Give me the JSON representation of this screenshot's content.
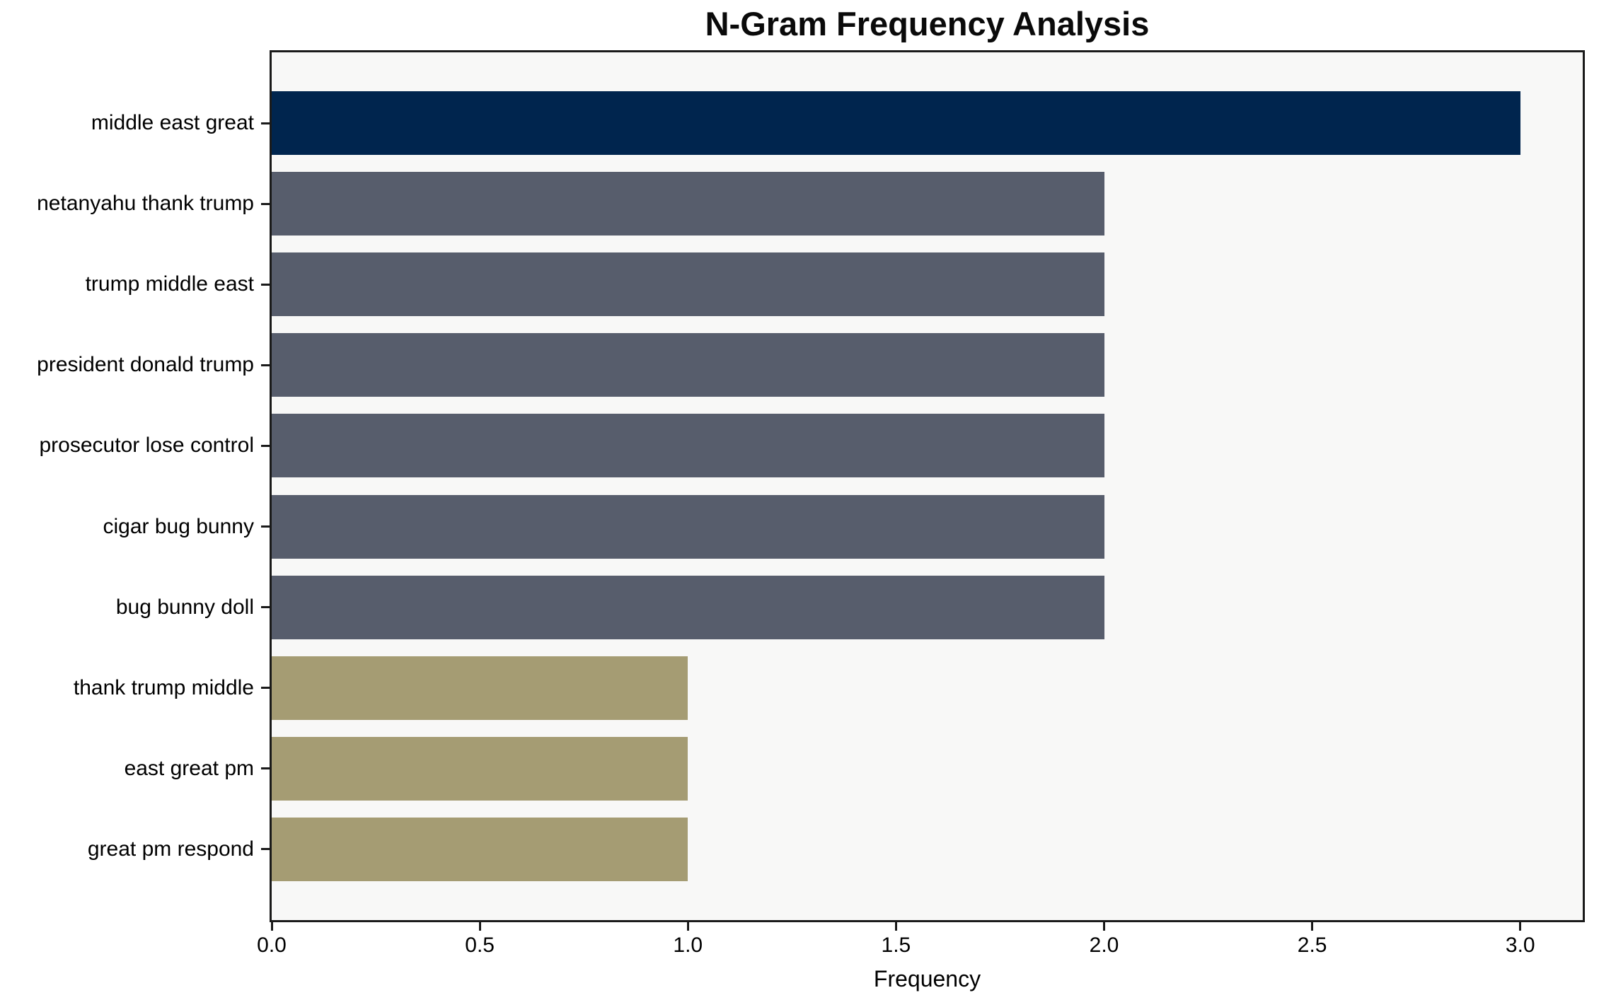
{
  "chart_data": {
    "type": "bar",
    "orientation": "horizontal",
    "title": "N-Gram Frequency Analysis",
    "xlabel": "Frequency",
    "categories": [
      "middle east great",
      "netanyahu thank trump",
      "trump middle east",
      "president donald trump",
      "prosecutor lose control",
      "cigar bug bunny",
      "bug bunny doll",
      "thank trump middle",
      "east great pm",
      "great pm respond"
    ],
    "values": [
      3,
      2,
      2,
      2,
      2,
      2,
      2,
      1,
      1,
      1
    ],
    "bar_colors": [
      "#00254e",
      "#575d6c",
      "#575d6c",
      "#575d6c",
      "#575d6c",
      "#575d6c",
      "#575d6c",
      "#a59c73",
      "#a59c73",
      "#a59c73"
    ],
    "xlim": [
      0,
      3.15
    ],
    "xtick_labels": [
      "0.0",
      "0.5",
      "1.0",
      "1.5",
      "2.0",
      "2.5",
      "3.0"
    ],
    "xtick_values": [
      0,
      0.5,
      1.0,
      1.5,
      2.0,
      2.5,
      3.0
    ],
    "grid": false,
    "legend": null,
    "plot_background": "#f8f8f7",
    "spine_color": "#1a1a1a"
  }
}
